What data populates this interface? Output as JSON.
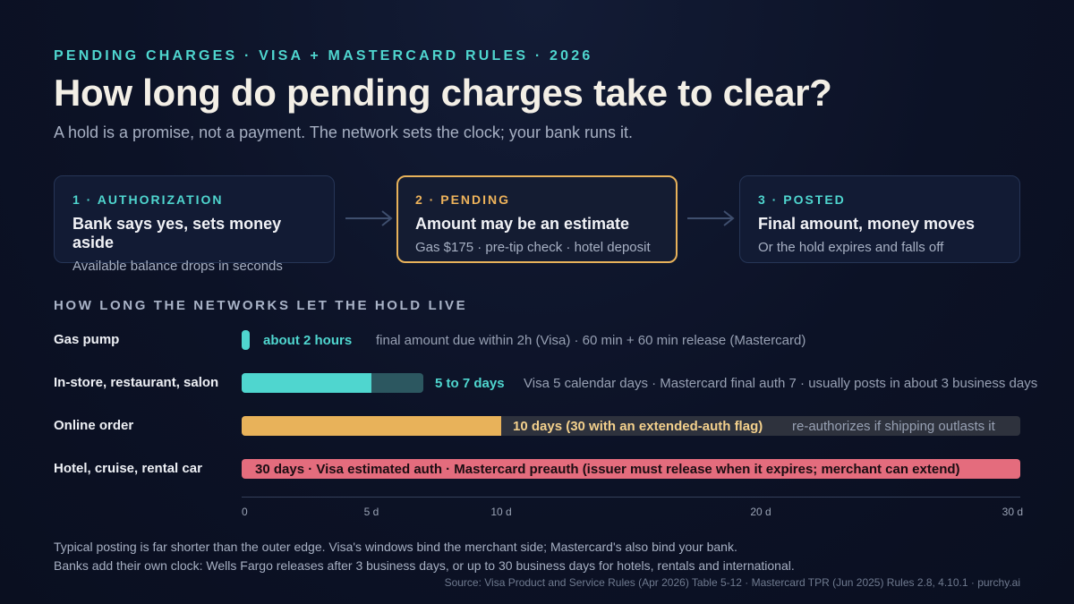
{
  "header": {
    "eyebrow": "PENDING CHARGES · VISA + MASTERCARD RULES · 2026",
    "title": "How long do pending charges take to clear?",
    "subtitle": "A hold is a promise, not a payment. The network sets the clock; your bank runs it."
  },
  "steps": [
    {
      "label": "1 · AUTHORIZATION",
      "title": "Bank says yes, sets money aside",
      "desc": "Available balance drops in seconds"
    },
    {
      "label": "2 · PENDING",
      "title": "Amount may be an estimate",
      "desc": "Gas $175 · pre-tip check · hotel deposit"
    },
    {
      "label": "3 · POSTED",
      "title": "Final amount, money moves",
      "desc": "Or the hold expires and falls off"
    }
  ],
  "section_title": "HOW LONG THE NETWORKS LET THE HOLD LIVE",
  "colors": {
    "teal": "#4fd6cf",
    "teal_dark": "#2c5760",
    "amber": "#e8b25a",
    "amber_track": "#2e323d",
    "rose": "#e46c7d",
    "background": "#0c1226"
  },
  "chart_data": {
    "type": "bar",
    "orientation": "horizontal",
    "xlim": [
      0,
      30
    ],
    "x_unit": "days",
    "xticks": [
      0,
      5,
      10,
      20,
      30
    ],
    "xtick_labels": [
      "0",
      "5 d",
      "10 d",
      "20 d",
      "30 d"
    ],
    "categories": [
      "Gas pump",
      "In-store, restaurant, salon",
      "Online order",
      "Hotel, cruise, rental car"
    ],
    "rows": [
      {
        "category": "Gas pump",
        "value": 0.083,
        "value_label": "about 2 hours",
        "note": "final amount due within 2h (Visa) · 60 min + 60 min release (Mastercard)"
      },
      {
        "category": "In-store, restaurant, salon",
        "value": 5,
        "value_max": 7,
        "value_label": "5 to 7 days",
        "note": "Visa 5 calendar days · Mastercard final auth 7 · usually posts in about 3 business days"
      },
      {
        "category": "Online order",
        "value": 10,
        "value_max": 30,
        "value_label": "10 days (30 with an extended-auth flag)",
        "note": "re-authorizes if shipping outlasts it"
      },
      {
        "category": "Hotel, cruise, rental car",
        "value": 30,
        "value_label": "30 days · Visa estimated auth · Mastercard preauth (issuer must release when it expires; merchant can extend)"
      }
    ]
  },
  "footer": {
    "line1": "Typical posting is far shorter than the outer edge. Visa's windows bind the merchant side; Mastercard's also bind your bank.",
    "line2": "Banks add their own clock: Wells Fargo releases after 3 business days, or up to 30 business days for hotels, rentals and international.",
    "source": "Source: Visa Product and Service Rules (Apr 2026) Table 5-12 · Mastercard TPR (Jun 2025) Rules 2.8, 4.10.1 · purchy.ai"
  }
}
